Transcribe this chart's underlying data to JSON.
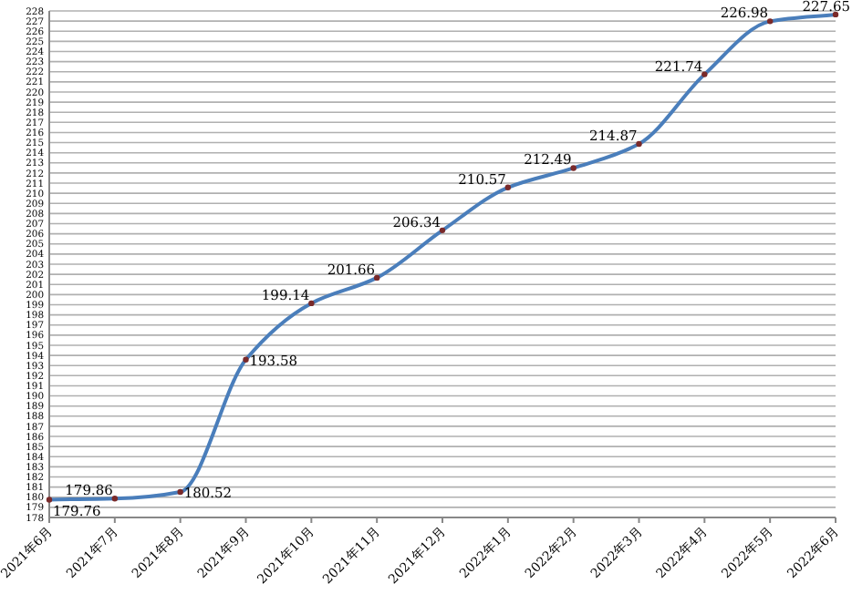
{
  "chart_data": {
    "type": "line",
    "categories": [
      "2021年6月",
      "2021年7月",
      "2021年8月",
      "2021年9月",
      "2021年10月",
      "2021年11月",
      "2021年12月",
      "2022年1月",
      "2022年2月",
      "2022年3月",
      "2022年4月",
      "2022年5月",
      "2022年6月"
    ],
    "series": [
      {
        "color": "#4a7ebb",
        "values": [
          179.76,
          179.86,
          180.52,
          193.58,
          199.14,
          201.66,
          206.34,
          210.57,
          212.49,
          214.87,
          221.74,
          226.98,
          227.65
        ]
      }
    ],
    "ylim": [
      178,
      228
    ],
    "yticks": [
      178,
      179,
      180,
      181,
      182,
      183,
      184,
      185,
      186,
      187,
      188,
      189,
      190,
      191,
      192,
      193,
      194,
      195,
      196,
      197,
      198,
      199,
      200,
      201,
      202,
      203,
      204,
      205,
      206,
      207,
      208,
      209,
      210,
      211,
      212,
      213,
      214,
      215,
      216,
      217,
      218,
      219,
      220,
      221,
      222,
      223,
      224,
      225,
      226,
      227,
      228
    ],
    "grid": "y",
    "marker": "circle",
    "line_style": "solid",
    "data_labels": true
  }
}
